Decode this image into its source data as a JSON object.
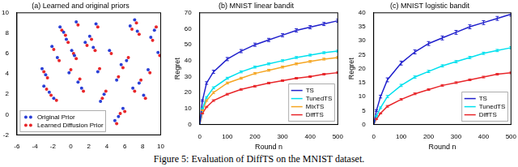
{
  "caption": "Figure 5: Evaluation of DiffTS on the MNIST dataset.",
  "chart_data": [
    {
      "type": "scatter",
      "title": "(a) Learned and original priors",
      "xlim": [
        -6,
        10
      ],
      "xticks": [
        -6,
        -4,
        -2,
        0,
        2,
        4,
        6,
        8,
        10
      ],
      "ylim": [
        -2,
        10
      ],
      "yticks": [
        -2,
        0,
        2,
        4,
        6,
        8,
        10
      ],
      "grid": false,
      "legend": "lower left",
      "series": [
        {
          "name": "Original Prior",
          "color": "#2a3fd6",
          "marker": "circle",
          "x": [
            -3.2,
            -2.8,
            -3.0,
            -2.4,
            -1.9,
            -1.2,
            -0.8,
            -0.5,
            0.1,
            0.4,
            -0.2,
            0.8,
            1.2,
            1.6,
            2.1,
            2.5,
            3.0,
            3.3,
            3.7,
            4.9,
            5.3,
            5.8,
            5.1,
            5.6,
            6.2,
            6.6,
            7.1,
            7.4,
            6.9,
            7.6,
            8.1,
            8.6,
            8.9,
            9.3,
            9.7,
            -1.5,
            -2.1,
            0.6,
            2.8,
            4.3
          ],
          "values": [
            4.5,
            3.9,
            2.8,
            2.2,
            1.6,
            8.6,
            8.1,
            7.4,
            6.3,
            5.8,
            4.1,
            3.2,
            2.6,
            7.1,
            7.7,
            6.6,
            4.2,
            1.3,
            2.0,
            -0.6,
            -0.2,
            0.6,
            3.4,
            4.9,
            5.3,
            8.7,
            9.3,
            8.2,
            2.6,
            3.1,
            1.9,
            4.4,
            7.6,
            8.3,
            6.1,
            5.6,
            6.7,
            9.1,
            8.9,
            6.3
          ]
        },
        {
          "name": "Learned Diffusion Prior",
          "color": "#e8262a",
          "marker": "circle",
          "x": [
            -3.0,
            -2.6,
            -2.7,
            -2.2,
            -1.6,
            -1.0,
            -0.6,
            -0.3,
            0.3,
            0.6,
            0.0,
            1.0,
            1.4,
            1.8,
            2.3,
            2.7,
            3.2,
            3.5,
            3.9,
            5.1,
            5.5,
            6.0,
            5.3,
            5.8,
            6.4,
            6.8,
            7.3,
            7.6,
            7.1,
            7.8,
            8.3,
            8.8,
            9.1,
            9.5,
            9.9,
            -1.3,
            -1.9,
            0.8,
            3.0,
            4.5
          ],
          "values": [
            4.2,
            3.6,
            2.5,
            1.9,
            1.4,
            8.3,
            7.8,
            7.1,
            6.0,
            5.5,
            4.4,
            3.5,
            2.3,
            6.8,
            7.4,
            6.3,
            4.5,
            1.6,
            2.3,
            -0.9,
            0.1,
            0.3,
            3.7,
            4.6,
            5.6,
            8.4,
            9.0,
            7.9,
            2.3,
            3.4,
            1.6,
            4.1,
            7.3,
            8.6,
            5.8,
            5.3,
            6.4,
            8.8,
            8.6,
            6.0
          ]
        }
      ]
    },
    {
      "type": "line",
      "title": "(b) MNIST linear bandit",
      "x_label": "Round n",
      "y_label": "Regret",
      "xlim": [
        0,
        500
      ],
      "xticks": [
        0,
        100,
        200,
        300,
        400,
        500
      ],
      "ylim": [
        0,
        70
      ],
      "yticks": [
        0,
        10,
        20,
        30,
        40,
        50,
        60,
        70
      ],
      "grid": false,
      "legend": "lower right",
      "x": [
        0,
        10,
        25,
        50,
        100,
        150,
        200,
        250,
        300,
        350,
        400,
        450,
        500
      ],
      "series": [
        {
          "name": "TS",
          "color": "#2020cc",
          "line_style": "solid",
          "values": [
            0,
            15,
            26,
            33,
            41,
            46,
            50,
            53,
            56,
            59,
            61,
            63,
            65
          ],
          "errors": [
            0,
            0.5,
            0.8,
            1.0,
            1.0,
            1.0,
            1.0,
            1.0,
            1.0,
            1.0,
            1.0,
            1.0,
            1.0
          ]
        },
        {
          "name": "TunedTS",
          "color": "#00e0ee",
          "line_style": "solid",
          "values": [
            0,
            10,
            17,
            23,
            29,
            33,
            36,
            38,
            40,
            42,
            43.5,
            45,
            46
          ],
          "errors": [
            0,
            0.3,
            0.5,
            0.6,
            0.6,
            0.6,
            0.6,
            0.6,
            0.6,
            0.6,
            0.6,
            0.6,
            0.6
          ]
        },
        {
          "name": "MixTS",
          "color": "#f5a623",
          "line_style": "solid",
          "values": [
            0,
            9,
            15,
            20,
            26,
            29,
            32,
            34,
            36,
            38,
            39.5,
            41,
            42
          ],
          "errors": [
            0,
            0.3,
            0.5,
            0.6,
            0.6,
            0.6,
            0.6,
            0.6,
            0.6,
            0.6,
            0.6,
            0.6,
            0.6
          ]
        },
        {
          "name": "DiffTS",
          "color": "#e8262a",
          "line_style": "solid",
          "values": [
            0,
            7,
            11,
            15,
            19,
            22,
            24,
            26,
            27.5,
            29,
            30,
            31.5,
            32.5
          ],
          "errors": [
            0,
            0.3,
            0.4,
            0.5,
            0.5,
            0.5,
            0.5,
            0.5,
            0.5,
            0.5,
            0.5,
            0.5,
            0.5
          ]
        }
      ]
    },
    {
      "type": "line",
      "title": "(c) MNIST logistic bandit",
      "x_label": "Round n",
      "y_label": "Regret",
      "xlim": [
        0,
        500
      ],
      "xticks": [
        0,
        100,
        200,
        300,
        400,
        500
      ],
      "ylim": [
        0,
        40
      ],
      "yticks": [
        0,
        5,
        10,
        15,
        20,
        25,
        30,
        35,
        40
      ],
      "grid": false,
      "legend": "lower right",
      "x": [
        0,
        10,
        25,
        50,
        100,
        150,
        200,
        250,
        300,
        350,
        400,
        450,
        500
      ],
      "series": [
        {
          "name": "TS",
          "color": "#2020cc",
          "line_style": "solid",
          "values": [
            0,
            5,
            10,
            16,
            22,
            26,
            29,
            31,
            33,
            35,
            36.5,
            38,
            39.5
          ],
          "errors": [
            0,
            0.3,
            0.5,
            0.7,
            0.7,
            0.7,
            0.7,
            0.7,
            0.7,
            0.7,
            0.7,
            0.7,
            0.7
          ]
        },
        {
          "name": "TunedTS",
          "color": "#00e0ee",
          "line_style": "solid",
          "values": [
            0,
            3,
            6,
            10,
            14,
            17,
            19,
            21,
            22.5,
            24,
            25.5,
            26.5,
            27.5
          ],
          "errors": [
            0,
            0.2,
            0.3,
            0.4,
            0.4,
            0.4,
            0.4,
            0.4,
            0.4,
            0.4,
            0.4,
            0.4,
            0.4
          ]
        },
        {
          "name": "DiffTS",
          "color": "#e8262a",
          "line_style": "solid",
          "values": [
            0,
            2,
            4,
            6.5,
            9,
            11,
            12.5,
            14,
            15,
            16,
            17,
            18,
            18.5
          ],
          "errors": [
            0,
            0.2,
            0.2,
            0.3,
            0.3,
            0.3,
            0.3,
            0.3,
            0.3,
            0.3,
            0.3,
            0.3,
            0.3
          ]
        }
      ]
    }
  ]
}
